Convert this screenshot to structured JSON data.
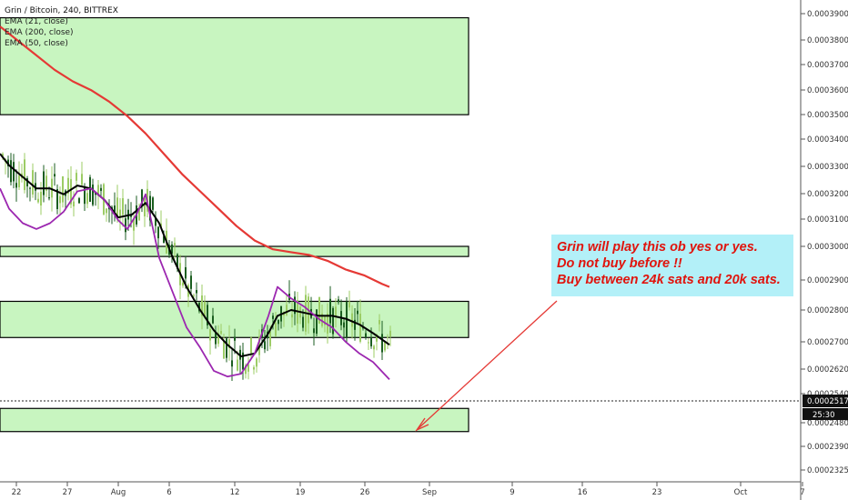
{
  "legend": {
    "symbol_line": "Grin / Bitcoin, 240, BITTREX",
    "ema1": "EMA (21, close)",
    "ema2": "EMA (200, close)",
    "ema3": "EMA (50, close)"
  },
  "annotation": {
    "line1": "Grin will play this ob yes or yes.",
    "line2": "Do not buy before !!",
    "line3": "Buy between 24k sats and 20k sats."
  },
  "colors": {
    "zone_fill": "#c8f5c0",
    "zone_border": "#000000",
    "ema21": "#000000",
    "ema50": "#9c27b0",
    "ema200": "#e53935",
    "candle": "#2e7d32",
    "arrow": "#e53935",
    "annotation_bg": "#b3f0f8",
    "annotation_text": "#e0140d"
  },
  "chart_data": {
    "type": "line",
    "title": "Grin / Bitcoin, 240, BITTREX",
    "y_axis": {
      "ylim": [
        0.0002295,
        0.0003978
      ],
      "ticks": [
        "0.00039000",
        "0.00038000",
        "0.00037000",
        "0.00036000",
        "0.00035000",
        "0.00034000",
        "0.00033000",
        "0.00032000",
        "0.00031000",
        "0.00030000",
        "0.00029000",
        "0.00028000",
        "0.00027000",
        "0.00026200",
        "0.00025400",
        "0.00024800",
        "0.00023900",
        "0.00023250"
      ],
      "last_price": "0.00025177",
      "countdown": "25:30"
    },
    "x_axis": {
      "ticks": [
        "22",
        "27",
        "Aug",
        "6",
        "12",
        "19",
        "26",
        "Sep",
        "9",
        "16",
        "23",
        "Oct",
        "7"
      ]
    },
    "zones": [
      {
        "from": 0.0003895,
        "to": 0.0003935
      },
      {
        "from": 0.0003455,
        "to": 0.000379
      },
      {
        "from": 0.0002965,
        "to": 0.0003
      },
      {
        "from": 0.0002685,
        "to": 0.000281
      },
      {
        "from": 0.000236,
        "to": 0.000244
      }
    ],
    "series": [
      {
        "name": "EMA (200, close)",
        "x": [
          0,
          20,
          40,
          60,
          80,
          100,
          120,
          140,
          160,
          180,
          200,
          220,
          240,
          260,
          280,
          300,
          320,
          340,
          360,
          380,
          400,
          420,
          428
        ],
        "values": [
          0.000376,
          0.000371,
          0.000366,
          0.000361,
          0.000357,
          0.000354,
          0.00035,
          0.000345,
          0.000339,
          0.000332,
          0.000325,
          0.000319,
          0.000313,
          0.000307,
          0.000302,
          0.000299,
          0.000298,
          0.000297,
          0.000295,
          0.000292,
          0.00029,
          0.000287,
          0.000286
        ]
      },
      {
        "name": "EMA (21, close)",
        "x": [
          0,
          10,
          25,
          40,
          55,
          70,
          85,
          100,
          115,
          130,
          145,
          160,
          175,
          190,
          205,
          220,
          235,
          250,
          265,
          280,
          295,
          305,
          320,
          335,
          350,
          365,
          380,
          395,
          410,
          428
        ],
        "values": [
          0.000332,
          0.000328,
          0.000324,
          0.00032,
          0.00032,
          0.000318,
          0.000321,
          0.00032,
          0.000316,
          0.00031,
          0.000311,
          0.000315,
          0.000308,
          0.000296,
          0.000286,
          0.000278,
          0.000271,
          0.000266,
          0.000262,
          0.000263,
          0.00027,
          0.000276,
          0.000278,
          0.000277,
          0.000276,
          0.000276,
          0.000275,
          0.000273,
          0.00027,
          0.000266
        ]
      },
      {
        "name": "EMA (50, close)",
        "x": [
          0,
          10,
          25,
          40,
          55,
          70,
          85,
          100,
          115,
          130,
          140,
          150,
          160,
          175,
          190,
          205,
          220,
          235,
          250,
          265,
          280,
          295,
          305,
          320,
          335,
          350,
          365,
          380,
          395,
          410,
          428
        ],
        "values": [
          0.00032,
          0.000313,
          0.000308,
          0.000306,
          0.000308,
          0.000312,
          0.000319,
          0.00032,
          0.000316,
          0.000309,
          0.000306,
          0.000311,
          0.000318,
          0.000296,
          0.000284,
          0.000272,
          0.000265,
          0.000257,
          0.000255,
          0.000256,
          0.000263,
          0.000276,
          0.000286,
          0.000282,
          0.000279,
          0.000275,
          0.000272,
          0.000267,
          0.000263,
          0.00026,
          0.000254
        ]
      }
    ]
  }
}
